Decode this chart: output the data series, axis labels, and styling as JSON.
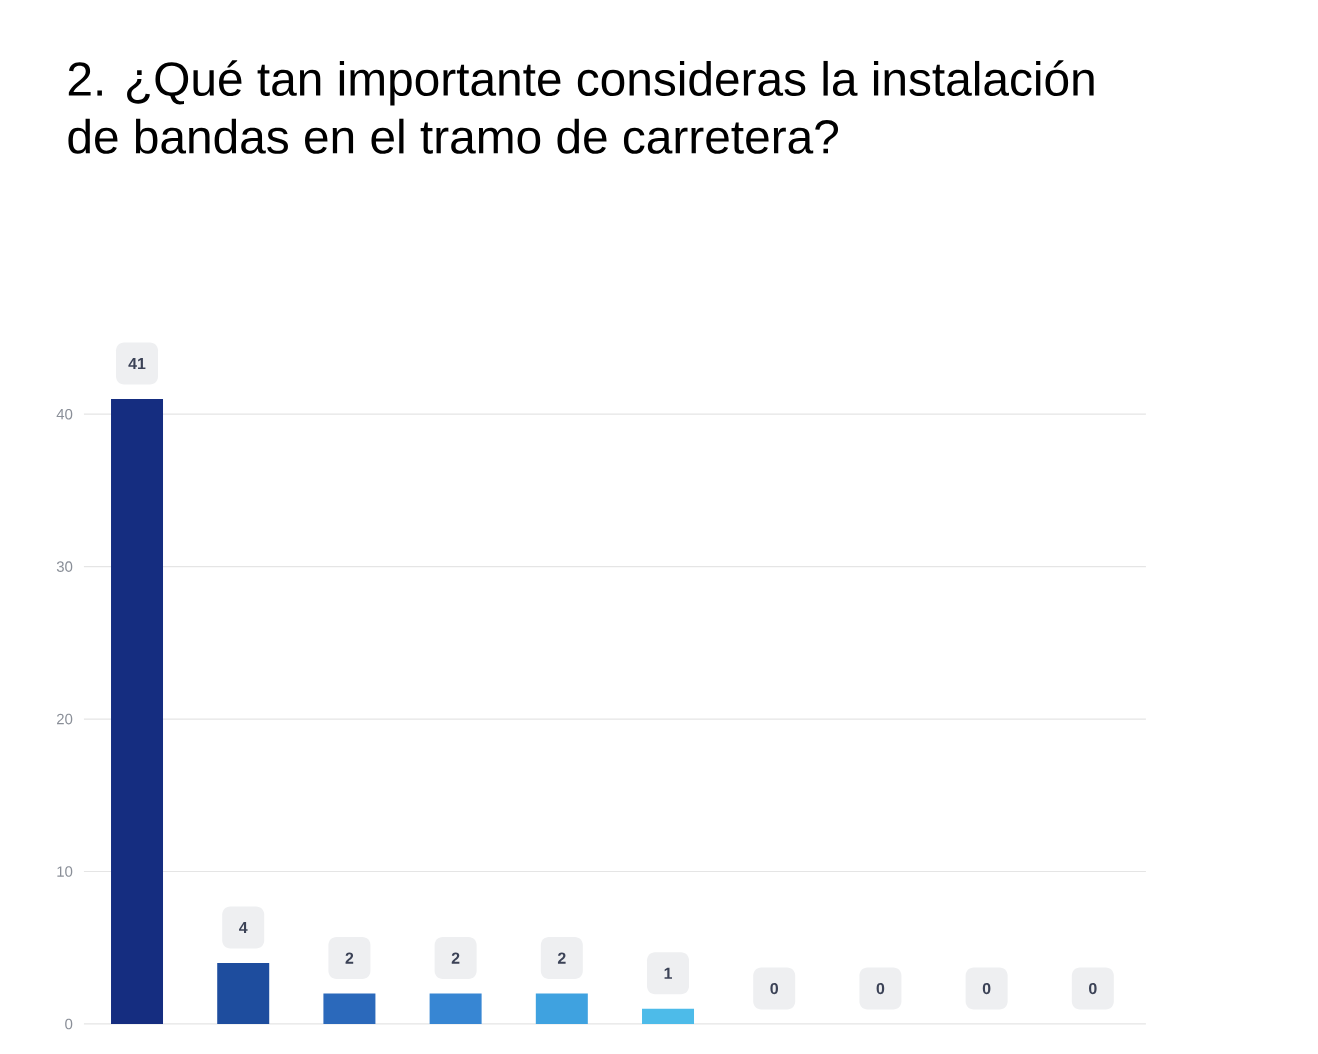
{
  "chart_data": {
    "type": "bar",
    "title": "2. ¿Qué tan importante consideras la instalación de bandas en el tramo de carretera?",
    "categories": [
      null,
      null,
      null,
      null,
      null,
      null,
      null,
      null,
      null,
      null
    ],
    "values": [
      41,
      4,
      2,
      2,
      2,
      1,
      0,
      0,
      0,
      0
    ],
    "colors": [
      "#152d80",
      "#1e4d9e",
      "#2b69bb",
      "#3786d3",
      "#3fa2e0",
      "#4dbbe9",
      "#5ccbee",
      "#6ed6f0",
      "#82def2",
      "#96e5f4"
    ],
    "ylim": [
      0,
      45
    ],
    "yticks": [
      0,
      10,
      20,
      30,
      40
    ],
    "grid": "y",
    "data_labels": true,
    "tick_labels": "y"
  }
}
